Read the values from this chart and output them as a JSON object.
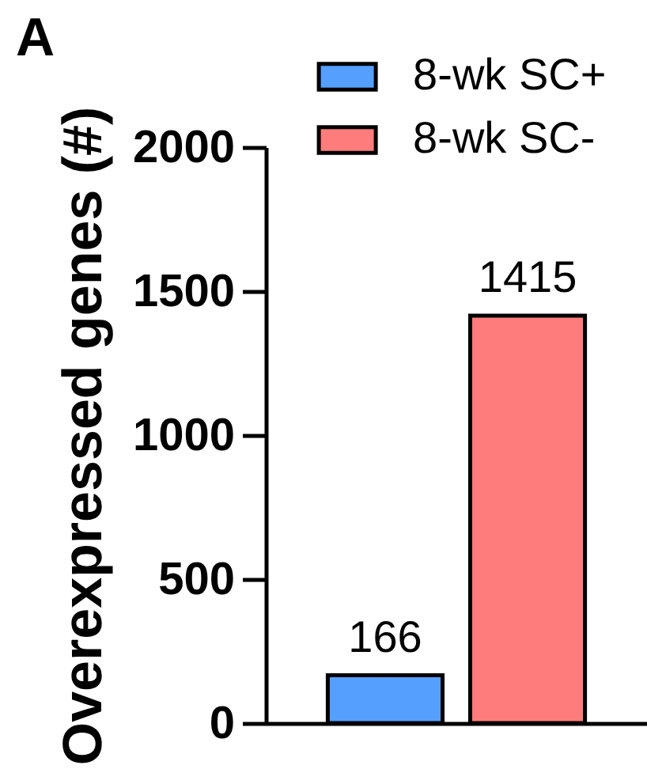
{
  "chart_data": {
    "type": "bar",
    "title": "A",
    "ylabel": "Overexpressed genes (#)",
    "categories": [
      null
    ],
    "series": [
      {
        "name": "8-wk SC+",
        "color": "#559fff",
        "values": [
          166
        ]
      },
      {
        "name": "8-wk SC-",
        "color": "#ff7c7c",
        "values": [
          1415
        ]
      }
    ],
    "ylim": [
      0,
      2000
    ],
    "yticks": [
      0,
      500,
      1000,
      1500,
      2000
    ],
    "data_labels": true,
    "legend": "top right",
    "tick_labels": "y"
  }
}
